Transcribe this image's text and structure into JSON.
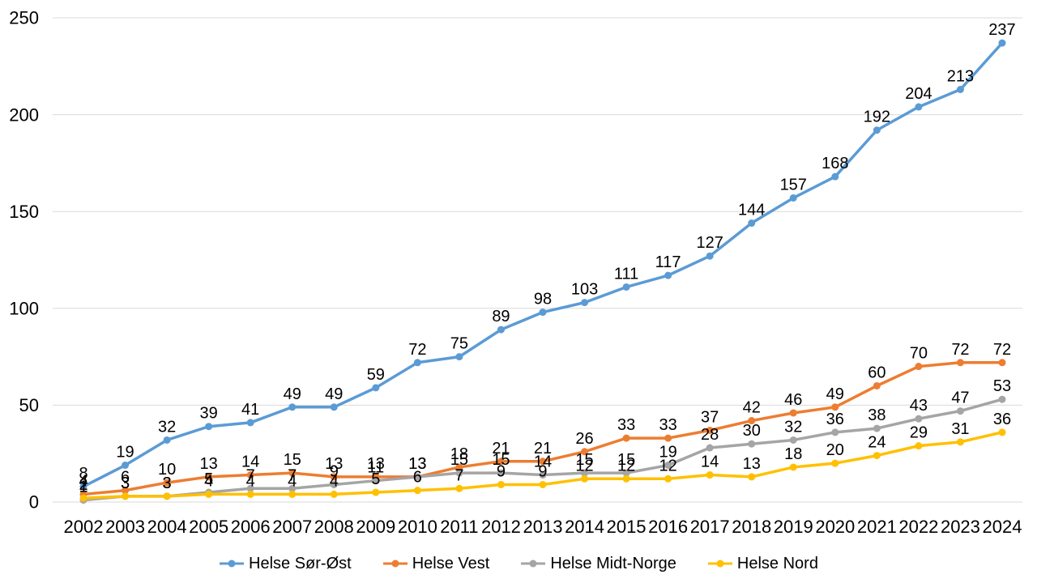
{
  "chart_data": {
    "type": "line",
    "categories": [
      "2002",
      "2003",
      "2004",
      "2005",
      "2006",
      "2007",
      "2008",
      "2009",
      "2010",
      "2011",
      "2012",
      "2013",
      "2014",
      "2015",
      "2016",
      "2017",
      "2018",
      "2019",
      "2020",
      "2021",
      "2022",
      "2023",
      "2024"
    ],
    "series": [
      {
        "name": "Helse Sør-Øst",
        "color": "#5B9BD5",
        "values": [
          8,
          19,
          32,
          39,
          41,
          49,
          49,
          59,
          72,
          75,
          89,
          98,
          103,
          111,
          117,
          127,
          144,
          157,
          168,
          192,
          204,
          213,
          237
        ]
      },
      {
        "name": "Helse Vest",
        "color": "#ED7D31",
        "values": [
          4,
          6,
          10,
          13,
          14,
          15,
          13,
          13,
          13,
          18,
          21,
          21,
          26,
          33,
          33,
          37,
          42,
          46,
          49,
          60,
          70,
          72,
          72
        ]
      },
      {
        "name": "Helse Midt-Norge",
        "color": "#A5A5A5",
        "values": [
          1,
          3,
          3,
          5,
          7,
          7,
          9,
          11,
          13,
          15,
          15,
          14,
          15,
          15,
          19,
          28,
          30,
          32,
          36,
          38,
          43,
          47,
          53
        ]
      },
      {
        "name": "Helse Nord",
        "color": "#FFC000",
        "values": [
          2,
          3,
          3,
          4,
          4,
          4,
          4,
          5,
          6,
          7,
          9,
          9,
          12,
          12,
          12,
          14,
          13,
          18,
          20,
          24,
          29,
          31,
          36
        ]
      }
    ],
    "title": "",
    "xlabel": "",
    "ylabel": "",
    "ylim": [
      0,
      250
    ],
    "yticks": [
      0,
      50,
      100,
      150,
      200,
      250
    ],
    "grid": true,
    "gridline_color": "#D9D9D9",
    "label_color": "#000000",
    "background_color": "#FFFFFF",
    "legend_position": "bottom",
    "data_labels": "above"
  }
}
